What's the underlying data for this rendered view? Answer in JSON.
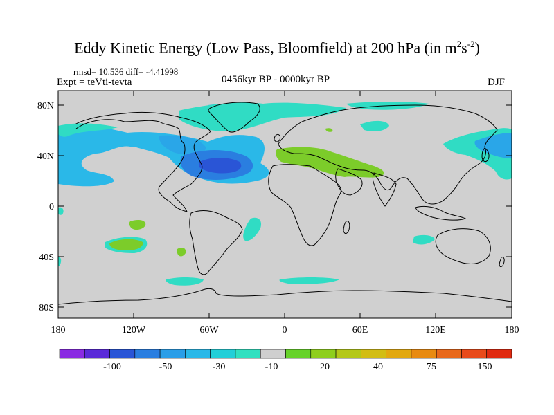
{
  "title": {
    "main": "Eddy Kinetic Energy (Low Pass, Bloomfield) at 200 hPa (in m",
    "sup1": "2",
    "mid": "s",
    "sup2": "-2",
    "end": ")"
  },
  "stats": "rmsd= 10.536 diff= -4.41998",
  "expt": "Expt = teVti-tevta",
  "period": "0456kyr BP - 0000kyr BP",
  "season": "DJF",
  "lat_labels": [
    "80N",
    "40N",
    "0",
    "40S",
    "80S"
  ],
  "lon_labels": [
    "180",
    "120W",
    "60W",
    "0",
    "60E",
    "120E",
    "180"
  ],
  "colorbar": {
    "colors": [
      "#8a2be2",
      "#5a2ad8",
      "#2a55d6",
      "#2a7ee0",
      "#2a9ee8",
      "#2ab8e8",
      "#22cfd8",
      "#30e0c0",
      "#cfcfcf",
      "#66d22a",
      "#8ecf1c",
      "#b4c818",
      "#d2bd14",
      "#e2a810",
      "#e88a10",
      "#e8681a",
      "#e84a1a",
      "#e02a10"
    ],
    "labels": [
      "-100",
      "-50",
      "-30",
      "-10",
      "20",
      "40",
      "75",
      "150"
    ]
  },
  "colors": {
    "land_ocean": "#d0d0d0",
    "blue_dark": "#2a55d6",
    "blue": "#2a7ee0",
    "light_blue": "#2aa6e8",
    "cyan": "#2ab8e8",
    "teal": "#30dcc4",
    "green": "#7ccc2a"
  }
}
